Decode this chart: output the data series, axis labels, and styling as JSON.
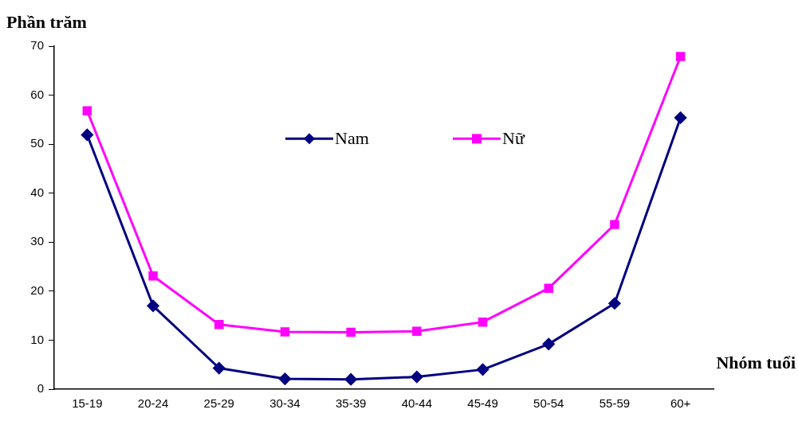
{
  "chart_data": {
    "type": "line",
    "ylabel": "Phần trăm",
    "xlabel": "Nhóm tuổi",
    "categories": [
      "15-19",
      "20-24",
      "25-29",
      "30-34",
      "35-39",
      "40-44",
      "45-49",
      "50-54",
      "55-59",
      "60+"
    ],
    "series": [
      {
        "name": "Nam",
        "color": "#000080",
        "marker": "diamond",
        "values": [
          51.9,
          17.0,
          4.3,
          2.1,
          2.0,
          2.5,
          4.0,
          9.2,
          17.5,
          55.4
        ]
      },
      {
        "name": "Nữ",
        "color": "#ff00ff",
        "marker": "square",
        "values": [
          56.8,
          23.1,
          13.2,
          11.7,
          11.6,
          11.8,
          13.7,
          20.6,
          33.6,
          67.9
        ]
      }
    ],
    "ylim": [
      0,
      70
    ],
    "yticks": [
      0,
      10,
      20,
      30,
      40,
      50,
      60,
      70
    ],
    "grid": false,
    "legend": "top",
    "line_style": "solid"
  }
}
